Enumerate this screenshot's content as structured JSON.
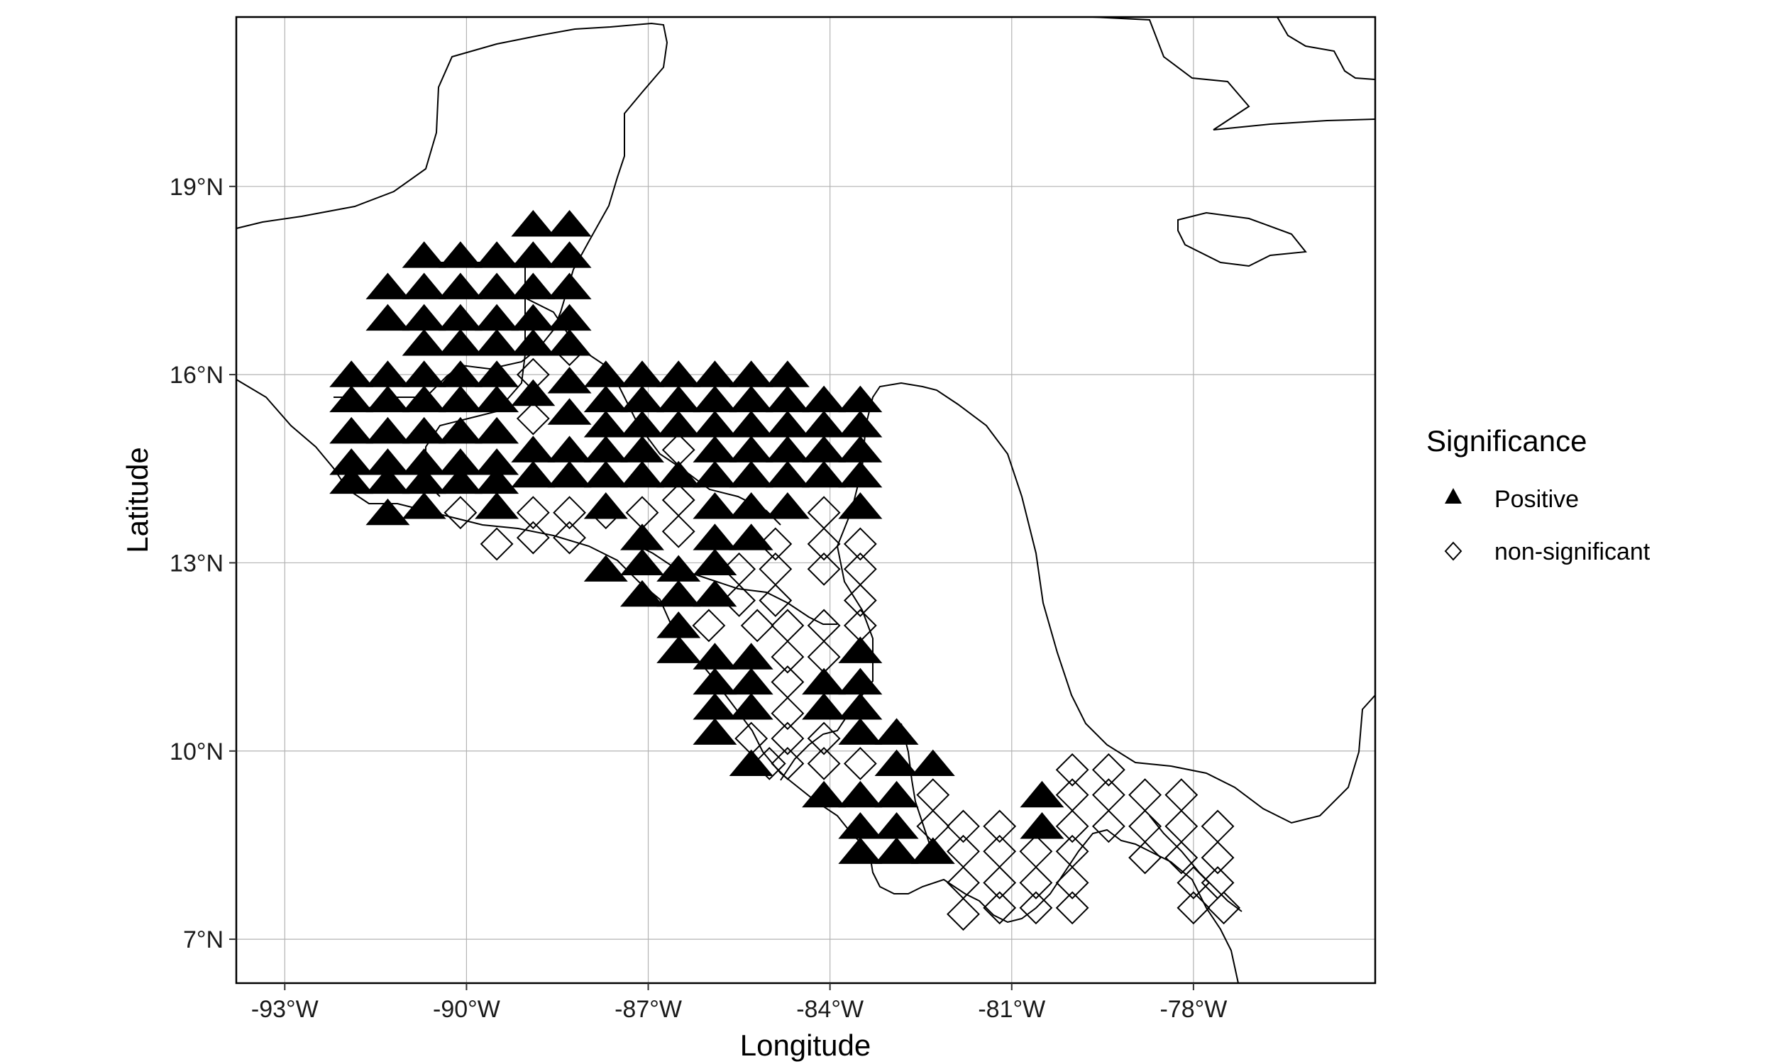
{
  "chart_data": {
    "type": "scatter",
    "title": "",
    "xlabel": "Longitude",
    "ylabel": "Latitude",
    "xlim": [
      -93.8,
      -75.0
    ],
    "ylim": [
      6.3,
      21.7
    ],
    "x_ticks": [
      -93,
      -90,
      -87,
      -84,
      -81,
      -78
    ],
    "x_tick_labels": [
      "-93°W",
      "-90°W",
      "-87°W",
      "-84°W",
      "-81°W",
      "-78°W"
    ],
    "y_ticks": [
      7,
      10,
      13,
      16,
      19
    ],
    "y_tick_labels": [
      "7°N",
      "10°N",
      "13°N",
      "16°N",
      "19°N"
    ],
    "grid": true,
    "legend": {
      "title": "Significance",
      "placement": "right",
      "entries": [
        {
          "label": "Positive",
          "marker": "filled-triangle"
        },
        {
          "label": "non-significant",
          "marker": "open-diamond"
        }
      ]
    },
    "series": [
      {
        "name": "Positive",
        "marker": "filled-triangle",
        "color": "#000000",
        "points": [
          [
            -91.9,
            16.0
          ],
          [
            -91.9,
            15.6
          ],
          [
            -91.9,
            15.1
          ],
          [
            -91.9,
            14.6
          ],
          [
            -91.9,
            14.3
          ],
          [
            -91.3,
            17.4
          ],
          [
            -91.3,
            16.9
          ],
          [
            -91.3,
            16.0
          ],
          [
            -91.3,
            15.6
          ],
          [
            -91.3,
            15.1
          ],
          [
            -91.3,
            14.6
          ],
          [
            -91.3,
            14.3
          ],
          [
            -91.3,
            13.8
          ],
          [
            -90.7,
            17.9
          ],
          [
            -90.7,
            17.4
          ],
          [
            -90.7,
            16.9
          ],
          [
            -90.7,
            16.5
          ],
          [
            -90.7,
            16.0
          ],
          [
            -90.7,
            15.6
          ],
          [
            -90.7,
            15.1
          ],
          [
            -90.7,
            14.6
          ],
          [
            -90.7,
            14.3
          ],
          [
            -90.7,
            13.9
          ],
          [
            -90.1,
            17.9
          ],
          [
            -90.1,
            17.4
          ],
          [
            -90.1,
            16.9
          ],
          [
            -90.1,
            16.5
          ],
          [
            -90.1,
            16.0
          ],
          [
            -90.1,
            15.6
          ],
          [
            -90.1,
            15.1
          ],
          [
            -90.1,
            14.6
          ],
          [
            -90.1,
            14.3
          ],
          [
            -89.5,
            17.9
          ],
          [
            -89.5,
            17.4
          ],
          [
            -89.5,
            16.9
          ],
          [
            -89.5,
            16.5
          ],
          [
            -89.5,
            16.0
          ],
          [
            -89.5,
            15.6
          ],
          [
            -89.5,
            15.1
          ],
          [
            -89.5,
            14.6
          ],
          [
            -89.5,
            14.3
          ],
          [
            -89.5,
            13.9
          ],
          [
            -88.9,
            18.4
          ],
          [
            -88.9,
            17.9
          ],
          [
            -88.9,
            17.4
          ],
          [
            -88.9,
            16.9
          ],
          [
            -88.9,
            16.5
          ],
          [
            -88.9,
            15.7
          ],
          [
            -88.9,
            14.8
          ],
          [
            -88.9,
            14.4
          ],
          [
            -88.3,
            18.4
          ],
          [
            -88.3,
            17.9
          ],
          [
            -88.3,
            17.4
          ],
          [
            -88.3,
            16.9
          ],
          [
            -88.3,
            16.5
          ],
          [
            -88.3,
            15.9
          ],
          [
            -88.3,
            15.4
          ],
          [
            -88.3,
            14.8
          ],
          [
            -88.3,
            14.4
          ],
          [
            -87.7,
            16.0
          ],
          [
            -87.7,
            15.6
          ],
          [
            -87.7,
            15.2
          ],
          [
            -87.7,
            14.8
          ],
          [
            -87.7,
            14.4
          ],
          [
            -87.7,
            13.9
          ],
          [
            -87.7,
            12.9
          ],
          [
            -87.1,
            16.0
          ],
          [
            -87.1,
            15.6
          ],
          [
            -87.1,
            15.2
          ],
          [
            -87.1,
            14.8
          ],
          [
            -87.1,
            14.4
          ],
          [
            -87.1,
            13.4
          ],
          [
            -87.1,
            13.0
          ],
          [
            -87.1,
            12.5
          ],
          [
            -86.5,
            16.0
          ],
          [
            -86.5,
            15.6
          ],
          [
            -86.5,
            15.2
          ],
          [
            -86.5,
            14.4
          ],
          [
            -86.5,
            12.9
          ],
          [
            -86.5,
            12.5
          ],
          [
            -86.5,
            12.0
          ],
          [
            -86.5,
            11.6
          ],
          [
            -85.9,
            16.0
          ],
          [
            -85.9,
            15.6
          ],
          [
            -85.9,
            15.2
          ],
          [
            -85.9,
            14.8
          ],
          [
            -85.9,
            14.4
          ],
          [
            -85.9,
            13.9
          ],
          [
            -85.9,
            13.4
          ],
          [
            -85.9,
            13.0
          ],
          [
            -85.9,
            12.5
          ],
          [
            -85.9,
            11.5
          ],
          [
            -85.9,
            11.1
          ],
          [
            -85.9,
            10.7
          ],
          [
            -85.9,
            10.3
          ],
          [
            -85.3,
            16.0
          ],
          [
            -85.3,
            15.6
          ],
          [
            -85.3,
            15.2
          ],
          [
            -85.3,
            14.8
          ],
          [
            -85.3,
            14.4
          ],
          [
            -85.3,
            13.9
          ],
          [
            -85.3,
            13.4
          ],
          [
            -85.3,
            11.5
          ],
          [
            -85.3,
            11.1
          ],
          [
            -85.3,
            10.7
          ],
          [
            -85.3,
            9.8
          ],
          [
            -84.7,
            16.0
          ],
          [
            -84.7,
            15.6
          ],
          [
            -84.7,
            15.2
          ],
          [
            -84.7,
            14.8
          ],
          [
            -84.7,
            14.4
          ],
          [
            -84.7,
            13.9
          ],
          [
            -84.1,
            15.6
          ],
          [
            -84.1,
            15.2
          ],
          [
            -84.1,
            14.8
          ],
          [
            -84.1,
            14.4
          ],
          [
            -84.1,
            11.1
          ],
          [
            -84.1,
            10.7
          ],
          [
            -84.1,
            9.3
          ],
          [
            -83.5,
            15.6
          ],
          [
            -83.5,
            15.2
          ],
          [
            -83.5,
            14.8
          ],
          [
            -83.5,
            14.4
          ],
          [
            -83.5,
            13.9
          ],
          [
            -83.5,
            11.6
          ],
          [
            -83.5,
            11.1
          ],
          [
            -83.5,
            10.7
          ],
          [
            -83.5,
            10.3
          ],
          [
            -83.5,
            9.3
          ],
          [
            -83.5,
            8.8
          ],
          [
            -83.5,
            8.4
          ],
          [
            -82.9,
            10.3
          ],
          [
            -82.9,
            9.8
          ],
          [
            -82.9,
            9.3
          ],
          [
            -82.9,
            8.8
          ],
          [
            -82.9,
            8.4
          ],
          [
            -82.3,
            9.8
          ],
          [
            -82.3,
            8.4
          ],
          [
            -80.5,
            9.3
          ],
          [
            -80.5,
            8.8
          ]
        ]
      },
      {
        "name": "non-significant",
        "marker": "open-diamond",
        "color": "#000000",
        "points": [
          [
            -88.9,
            16.0
          ],
          [
            -88.9,
            15.3
          ],
          [
            -88.3,
            16.4
          ],
          [
            -90.1,
            13.8
          ],
          [
            -89.5,
            13.3
          ],
          [
            -88.9,
            13.8
          ],
          [
            -88.9,
            13.4
          ],
          [
            -88.3,
            13.8
          ],
          [
            -88.3,
            13.4
          ],
          [
            -87.7,
            13.8
          ],
          [
            -87.1,
            13.8
          ],
          [
            -86.5,
            14.8
          ],
          [
            -86.5,
            14.0
          ],
          [
            -86.5,
            13.5
          ],
          [
            -86.0,
            12.0
          ],
          [
            -85.5,
            12.9
          ],
          [
            -85.5,
            12.4
          ],
          [
            -85.2,
            12.0
          ],
          [
            -84.9,
            13.3
          ],
          [
            -84.9,
            12.9
          ],
          [
            -84.9,
            12.4
          ],
          [
            -84.1,
            13.8
          ],
          [
            -84.1,
            13.3
          ],
          [
            -84.1,
            12.9
          ],
          [
            -84.1,
            12.0
          ],
          [
            -84.1,
            11.5
          ],
          [
            -83.5,
            13.3
          ],
          [
            -83.5,
            12.9
          ],
          [
            -83.5,
            12.4
          ],
          [
            -83.5,
            12.0
          ],
          [
            -84.7,
            12.0
          ],
          [
            -84.7,
            11.5
          ],
          [
            -84.7,
            11.1
          ],
          [
            -84.7,
            10.6
          ],
          [
            -84.7,
            10.2
          ],
          [
            -84.7,
            9.8
          ],
          [
            -84.1,
            10.2
          ],
          [
            -84.1,
            9.8
          ],
          [
            -85.3,
            10.2
          ],
          [
            -85.0,
            9.8
          ],
          [
            -83.5,
            9.8
          ],
          [
            -82.3,
            9.3
          ],
          [
            -82.3,
            8.8
          ],
          [
            -81.8,
            8.8
          ],
          [
            -81.8,
            8.4
          ],
          [
            -81.8,
            7.9
          ],
          [
            -81.8,
            7.4
          ],
          [
            -81.2,
            8.8
          ],
          [
            -81.2,
            8.4
          ],
          [
            -81.2,
            7.9
          ],
          [
            -81.2,
            7.5
          ],
          [
            -80.6,
            8.4
          ],
          [
            -80.6,
            7.9
          ],
          [
            -80.6,
            7.5
          ],
          [
            -80.0,
            9.7
          ],
          [
            -80.0,
            9.3
          ],
          [
            -80.0,
            8.8
          ],
          [
            -80.0,
            8.4
          ],
          [
            -80.0,
            7.9
          ],
          [
            -80.0,
            7.5
          ],
          [
            -79.4,
            9.7
          ],
          [
            -79.4,
            9.3
          ],
          [
            -79.4,
            8.8
          ],
          [
            -78.8,
            9.3
          ],
          [
            -78.8,
            8.8
          ],
          [
            -78.8,
            8.3
          ],
          [
            -78.2,
            9.3
          ],
          [
            -78.2,
            8.8
          ],
          [
            -78.2,
            8.3
          ],
          [
            -78.0,
            7.9
          ],
          [
            -78.0,
            7.5
          ],
          [
            -77.6,
            8.8
          ],
          [
            -77.6,
            8.3
          ],
          [
            -77.6,
            7.9
          ],
          [
            -77.5,
            7.5
          ]
        ]
      }
    ]
  }
}
